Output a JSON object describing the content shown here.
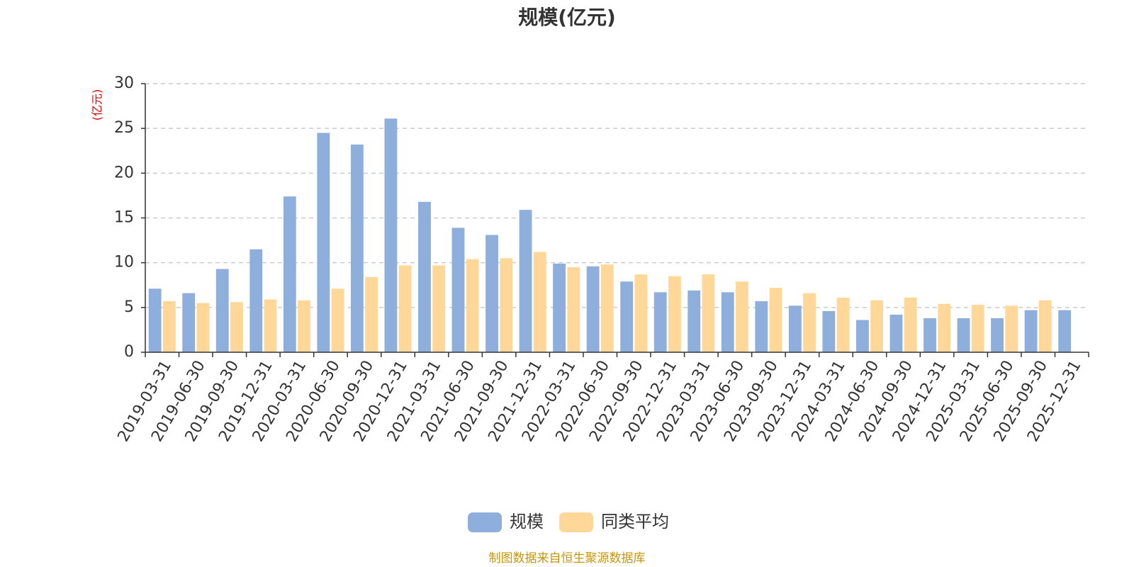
{
  "chart_data": {
    "type": "bar",
    "title": "规模(亿元)",
    "ylabel": "(亿元)",
    "ylim": [
      0,
      30
    ],
    "yticks": [
      0,
      5,
      10,
      15,
      20,
      25,
      30
    ],
    "grid": true,
    "legend_position": "bottom-center",
    "categories": [
      "2019-03-31",
      "2019-06-30",
      "2019-09-30",
      "2019-12-31",
      "2020-03-31",
      "2020-06-30",
      "2020-09-30",
      "2020-12-31",
      "2021-03-31",
      "2021-06-30",
      "2021-09-30",
      "2021-12-31",
      "2022-03-31",
      "2022-06-30",
      "2022-09-30",
      "2022-12-31",
      "2023-03-31",
      "2023-06-30",
      "2023-09-30",
      "2023-12-31",
      "2024-03-31",
      "2024-06-30",
      "2024-09-30",
      "2024-12-31",
      "2025-03-31",
      "2025-06-30",
      "2025-09-30",
      "2025-12-31"
    ],
    "series": [
      {
        "name": "规模",
        "color": "#8eaedb",
        "values": [
          7.1,
          6.6,
          9.3,
          11.5,
          17.4,
          24.5,
          23.2,
          26.1,
          16.8,
          13.9,
          13.1,
          15.9,
          9.9,
          9.6,
          7.9,
          6.7,
          6.9,
          6.7,
          5.7,
          5.2,
          4.6,
          3.6,
          4.2,
          3.8,
          3.8,
          3.8,
          4.7,
          4.7
        ]
      },
      {
        "name": "同类平均",
        "color": "#ffd899",
        "values": [
          5.7,
          5.5,
          5.6,
          5.9,
          5.8,
          7.1,
          8.4,
          9.7,
          9.7,
          10.4,
          10.5,
          11.2,
          9.5,
          9.8,
          8.7,
          8.5,
          8.7,
          7.9,
          7.2,
          6.6,
          6.1,
          5.8,
          6.1,
          5.4,
          5.3,
          5.2,
          5.8,
          null
        ]
      }
    ]
  },
  "footer": {
    "source": "制图数据来自恒生聚源数据库"
  }
}
